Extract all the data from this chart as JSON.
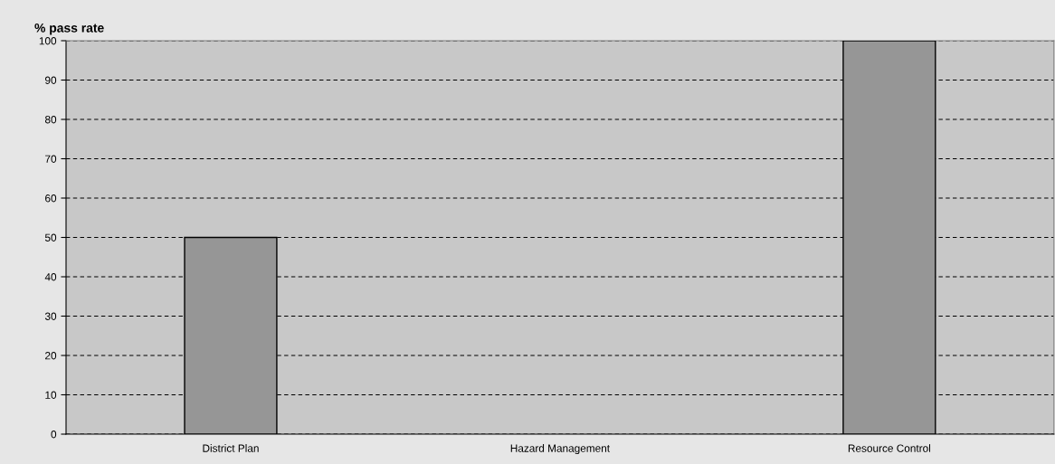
{
  "chart_data": {
    "type": "bar",
    "ylabel": "% pass rate",
    "categories": [
      "District Plan",
      "Hazard Management",
      "Resource Control"
    ],
    "values": [
      50,
      null,
      100
    ],
    "color": "#969696",
    "ylim": [
      0,
      100
    ],
    "yticks": [
      0,
      10,
      20,
      30,
      40,
      50,
      60,
      70,
      80,
      90,
      100
    ],
    "grid": "y"
  }
}
